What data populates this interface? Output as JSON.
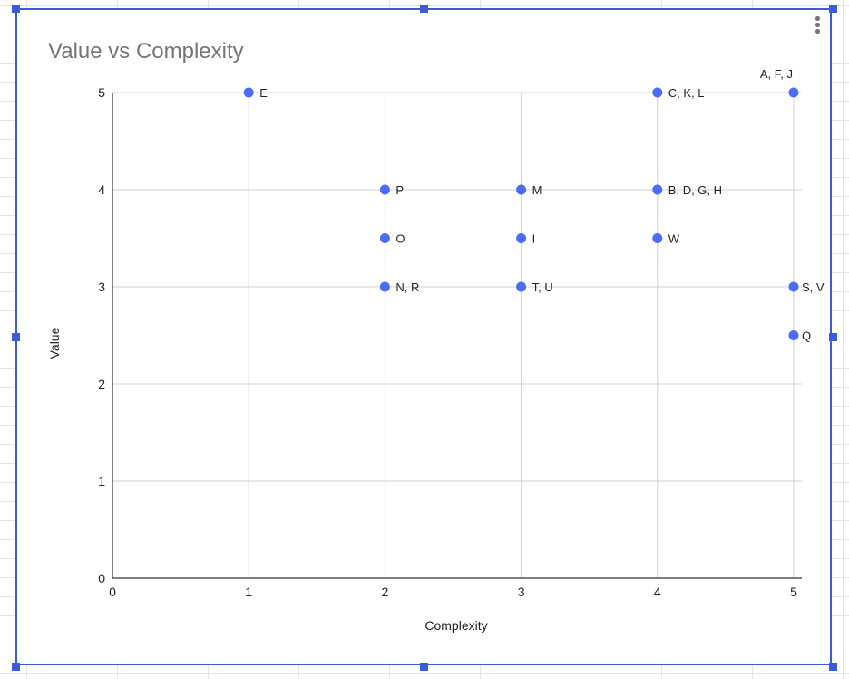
{
  "chart_data": {
    "type": "scatter",
    "title": "Value vs Complexity",
    "xlabel": "Complexity",
    "ylabel": "Value",
    "xlim": [
      0,
      5
    ],
    "ylim": [
      0,
      5
    ],
    "xticks": [
      "0",
      "1",
      "2",
      "3",
      "4",
      "5"
    ],
    "yticks": [
      "0",
      "1",
      "2",
      "3",
      "4",
      "5"
    ],
    "grid": true,
    "marker_color": "#4a6cf7",
    "points": [
      {
        "x": 1,
        "y": 5,
        "label": "E"
      },
      {
        "x": 4,
        "y": 5,
        "label": "C, K, L"
      },
      {
        "x": 5,
        "y": 5,
        "label": "A, F, J"
      },
      {
        "x": 2,
        "y": 4,
        "label": "P"
      },
      {
        "x": 3,
        "y": 4,
        "label": "M"
      },
      {
        "x": 4,
        "y": 4,
        "label": "B, D, G, H"
      },
      {
        "x": 2,
        "y": 3.5,
        "label": "O"
      },
      {
        "x": 3,
        "y": 3.5,
        "label": "I"
      },
      {
        "x": 4,
        "y": 3.5,
        "label": "W"
      },
      {
        "x": 2,
        "y": 3,
        "label": "N, R"
      },
      {
        "x": 3,
        "y": 3,
        "label": "T, U"
      },
      {
        "x": 5,
        "y": 3,
        "label": "S, V"
      },
      {
        "x": 5,
        "y": 2.5,
        "label": "Q"
      }
    ]
  }
}
